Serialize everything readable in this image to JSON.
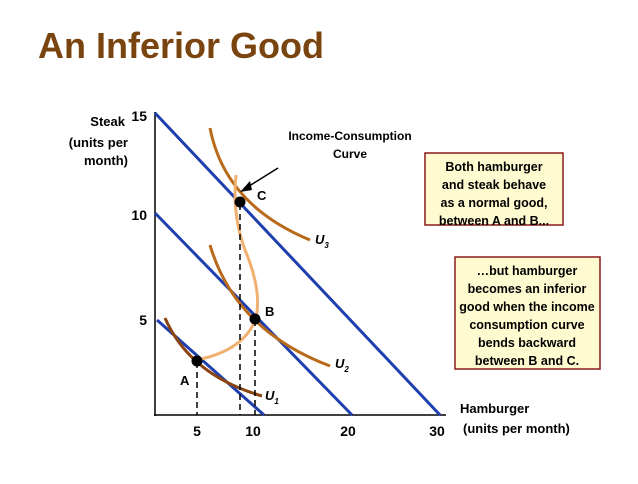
{
  "header": {
    "title": "An Inferior Good"
  },
  "axes": {
    "y_label": [
      "Steak",
      "(units per",
      "month)"
    ],
    "x_label": [
      "Hamburger",
      "(units per month)"
    ],
    "y_ticks": [
      "15",
      "10",
      "5"
    ],
    "x_ticks": [
      "5",
      "10",
      "20",
      "30"
    ]
  },
  "curves": {
    "icc_label": [
      "Income-Consumption",
      "Curve"
    ],
    "u_labels": [
      {
        "base": "U",
        "sub": "1"
      },
      {
        "base": "U",
        "sub": "2"
      },
      {
        "base": "U",
        "sub": "3"
      }
    ]
  },
  "points": [
    "A",
    "B",
    "C"
  ],
  "notes": [
    [
      "Both hamburger",
      "and steak behave",
      "as a normal good,",
      "between A and B..."
    ],
    [
      "…but hamburger",
      "becomes an inferior",
      "good when the income",
      "consumption curve",
      "bends backward",
      "between B and C."
    ]
  ]
}
